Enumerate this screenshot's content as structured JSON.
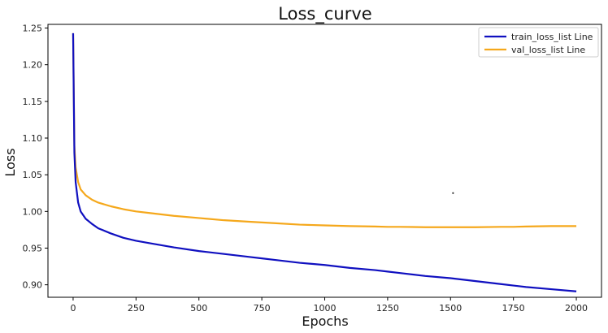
{
  "chart_data": {
    "type": "line",
    "title": "Loss_curve",
    "xlabel": "Epochs",
    "ylabel": "Loss",
    "xlim": [
      -100,
      2100
    ],
    "ylim": [
      0.883,
      1.255
    ],
    "xticks": [
      0,
      250,
      500,
      750,
      1000,
      1250,
      1500,
      1750,
      2000
    ],
    "yticks": [
      0.9,
      0.95,
      1.0,
      1.05,
      1.1,
      1.15,
      1.2,
      1.25
    ],
    "grid": false,
    "legend_position": "top-right",
    "series": [
      {
        "name": "train_loss_list Line",
        "color": "#1010c0",
        "x": [
          0,
          5,
          10,
          20,
          30,
          50,
          75,
          100,
          150,
          200,
          250,
          300,
          400,
          500,
          600,
          700,
          750,
          800,
          900,
          1000,
          1100,
          1200,
          1250,
          1300,
          1400,
          1500,
          1600,
          1700,
          1750,
          1800,
          1900,
          2000
        ],
        "y": [
          1.243,
          1.08,
          1.04,
          1.012,
          1.0,
          0.99,
          0.983,
          0.977,
          0.97,
          0.964,
          0.96,
          0.957,
          0.951,
          0.946,
          0.942,
          0.938,
          0.936,
          0.934,
          0.93,
          0.927,
          0.923,
          0.92,
          0.918,
          0.916,
          0.912,
          0.909,
          0.905,
          0.901,
          0.899,
          0.897,
          0.894,
          0.891
        ]
      },
      {
        "name": "val_loss_list Line",
        "color": "#f5a81c",
        "x": [
          0,
          5,
          10,
          20,
          30,
          50,
          75,
          100,
          150,
          200,
          250,
          300,
          400,
          500,
          600,
          700,
          750,
          800,
          900,
          1000,
          1100,
          1200,
          1250,
          1300,
          1400,
          1500,
          1600,
          1700,
          1750,
          1800,
          1900,
          2000
        ],
        "y": [
          1.243,
          1.09,
          1.06,
          1.04,
          1.03,
          1.022,
          1.016,
          1.012,
          1.007,
          1.003,
          1.0,
          0.998,
          0.994,
          0.991,
          0.988,
          0.986,
          0.985,
          0.984,
          0.982,
          0.981,
          0.98,
          0.9795,
          0.979,
          0.979,
          0.9785,
          0.9785,
          0.9785,
          0.979,
          0.979,
          0.9795,
          0.98,
          0.98
        ]
      }
    ],
    "annotations": [
      {
        "kind": "point",
        "x": 1510,
        "y": 1.025
      }
    ]
  }
}
